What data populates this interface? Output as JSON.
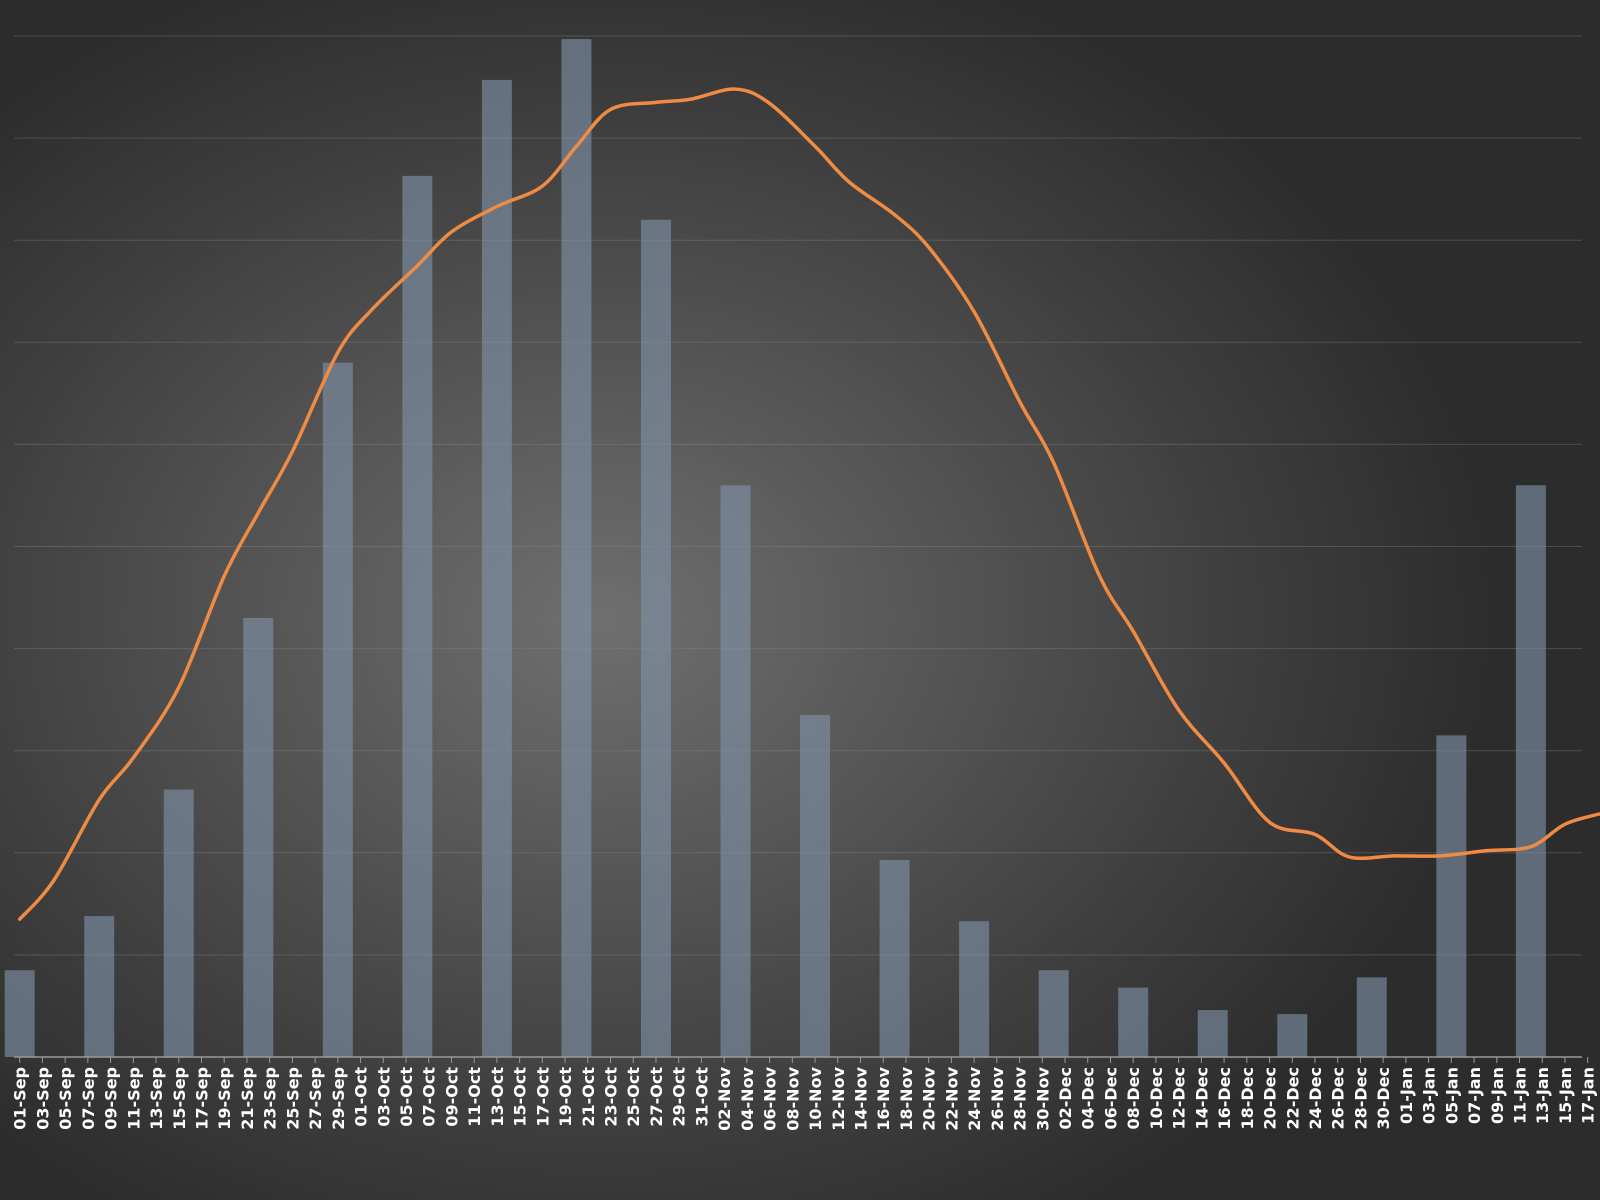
{
  "colors": {
    "bar": "#7f93a8",
    "line": "#ef8b42",
    "grid": "#8a8a8a",
    "label": "#ffffff"
  },
  "chart_data": {
    "type": "bar",
    "title": "",
    "xlabel": "",
    "ylabel": "",
    "grid": true,
    "legend": "none",
    "ylim": [
      0,
      10
    ],
    "x_tick_labels": [
      "01-Sep",
      "03-Sep",
      "05-Sep",
      "07-Sep",
      "09-Sep",
      "11-Sep",
      "13-Sep",
      "15-Sep",
      "17-Sep",
      "19-Sep",
      "21-Sep",
      "23-Sep",
      "25-Sep",
      "27-Sep",
      "29-Sep",
      "01-Oct",
      "03-Oct",
      "05-Oct",
      "07-Oct",
      "09-Oct",
      "11-Oct",
      "13-Oct",
      "15-Oct",
      "17-Oct",
      "19-Oct",
      "21-Oct",
      "23-Oct",
      "25-Oct",
      "27-Oct",
      "29-Oct",
      "31-Oct",
      "02-Nov",
      "04-Nov",
      "06-Nov",
      "08-Nov",
      "10-Nov",
      "12-Nov",
      "14-Nov",
      "16-Nov",
      "18-Nov",
      "20-Nov",
      "22-Nov",
      "24-Nov",
      "26-Nov",
      "28-Nov",
      "30-Nov",
      "02-Dec",
      "04-Dec",
      "06-Dec",
      "08-Dec",
      "10-Dec",
      "12-Dec",
      "14-Dec",
      "16-Dec",
      "18-Dec",
      "20-Dec",
      "22-Dec",
      "24-Dec",
      "26-Dec",
      "28-Dec",
      "30-Dec",
      "01-Jan",
      "03-Jan",
      "05-Jan",
      "07-Jan",
      "09-Jan",
      "11-Jan",
      "13-Jan",
      "15-Jan",
      "17-Jan"
    ],
    "series": [
      {
        "type": "bar",
        "x": [
          "01-Sep",
          "08-Sep",
          "15-Sep",
          "22-Sep",
          "29-Sep",
          "06-Oct",
          "13-Oct",
          "20-Oct",
          "27-Oct",
          "03-Nov",
          "10-Nov",
          "17-Nov",
          "24-Nov",
          "01-Dec",
          "08-Dec",
          "15-Dec",
          "22-Dec",
          "29-Dec",
          "05-Jan",
          "12-Jan"
        ],
        "values": [
          0.85,
          1.38,
          2.62,
          4.3,
          6.8,
          8.63,
          9.57,
          9.97,
          8.2,
          5.6,
          3.35,
          1.93,
          1.33,
          0.85,
          0.68,
          0.46,
          0.42,
          0.78,
          3.15,
          5.6
        ]
      },
      {
        "type": "line",
        "x": [
          "01-Sep",
          "04-Sep",
          "08-Sep",
          "11-Sep",
          "15-Sep",
          "19-Sep",
          "22-Sep",
          "25-Sep",
          "29-Sep",
          "02-Oct",
          "06-Oct",
          "09-Oct",
          "13-Oct",
          "17-Oct",
          "20-Oct",
          "23-Oct",
          "27-Oct",
          "30-Oct",
          "03-Nov",
          "06-Nov",
          "10-Nov",
          "13-Nov",
          "17-Nov",
          "20-Nov",
          "24-Nov",
          "28-Nov",
          "01-Dec",
          "05-Dec",
          "08-Dec",
          "12-Dec",
          "16-Dec",
          "20-Dec",
          "24-Dec",
          "27-Dec",
          "31-Dec",
          "04-Jan",
          "08-Jan",
          "12-Jan",
          "15-Jan",
          "18-Jan"
        ],
        "values": [
          1.35,
          1.73,
          2.52,
          2.93,
          3.62,
          4.71,
          5.33,
          5.93,
          6.9,
          7.32,
          7.75,
          8.08,
          8.33,
          8.53,
          8.92,
          9.28,
          9.35,
          9.38,
          9.48,
          9.34,
          8.92,
          8.57,
          8.25,
          7.93,
          7.3,
          6.42,
          5.82,
          4.72,
          4.17,
          3.4,
          2.88,
          2.3,
          2.18,
          1.96,
          1.97,
          1.97,
          2.02,
          2.06,
          2.28,
          2.38
        ]
      }
    ]
  }
}
